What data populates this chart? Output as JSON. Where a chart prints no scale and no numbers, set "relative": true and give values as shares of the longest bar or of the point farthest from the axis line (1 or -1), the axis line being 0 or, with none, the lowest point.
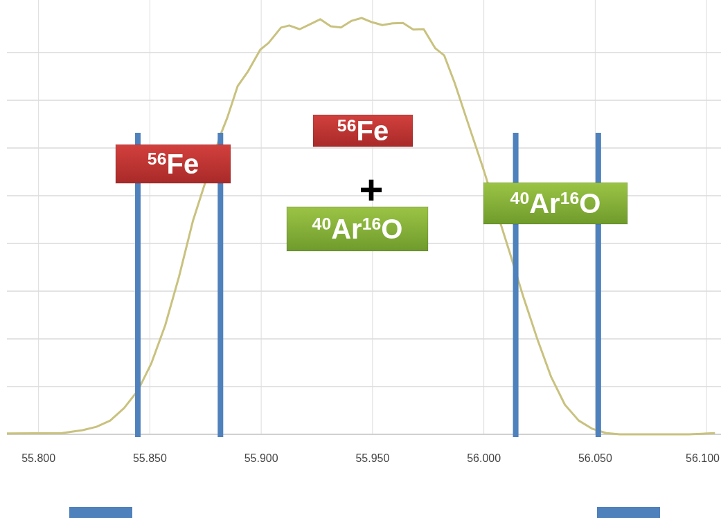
{
  "chart_data": {
    "type": "line",
    "relative": true,
    "tick_labels": "x",
    "grid": true,
    "marker": "none",
    "line_style": "solid",
    "xlim": [
      55.7858,
      56.1065
    ],
    "xticks": [
      {
        "value": 55.8,
        "label": "55.800"
      },
      {
        "value": 55.85,
        "label": "55.850"
      },
      {
        "value": 55.9,
        "label": "55.900"
      },
      {
        "value": 55.95,
        "label": "55.950"
      },
      {
        "value": 56.0,
        "label": "56.000"
      },
      {
        "value": 56.05,
        "label": "56.050"
      },
      {
        "value": 56.1,
        "label": "56.100"
      }
    ],
    "series": [
      {
        "color": "#c9c27f",
        "x": [
          55.7858,
          55.8105,
          55.8198,
          55.826,
          55.8322,
          55.8384,
          55.8446,
          55.8507,
          55.8569,
          55.8631,
          55.8693,
          55.8755,
          55.8817,
          55.8848,
          55.8894,
          55.8941,
          55.8996,
          55.9033,
          55.9089,
          55.9126,
          55.9173,
          55.9219,
          55.9265,
          55.9312,
          55.9358,
          55.9405,
          55.9451,
          55.9497,
          55.9544,
          55.959,
          55.9637,
          55.9683,
          55.973,
          55.9782,
          55.9822,
          55.9869,
          55.9931,
          55.9993,
          56.0054,
          56.0116,
          56.0178,
          56.024,
          56.0302,
          56.0364,
          56.0426,
          56.0488,
          56.055,
          56.0611,
          56.0921,
          56.1038
        ],
        "values": [
          0.002,
          0.003,
          0.01,
          0.018,
          0.033,
          0.063,
          0.105,
          0.171,
          0.262,
          0.379,
          0.512,
          null,
          0.719,
          0.761,
          0.836,
          0.872,
          0.924,
          0.94,
          0.977,
          0.982,
          0.973,
          0.985,
          0.997,
          0.98,
          0.977,
          0.993,
          1.0,
          0.99,
          0.983,
          0.987,
          0.988,
          0.972,
          0.973,
          0.927,
          0.91,
          0.844,
          0.744,
          0.645,
          null,
          0.437,
          0.329,
          0.229,
          0.138,
          0.071,
          0.033,
          0.013,
          0.003,
          0,
          0,
          0.003
        ]
      }
    ],
    "ref_lines": [
      {
        "axis": "x",
        "value": 55.8446,
        "color": "#4f81bd"
      },
      {
        "axis": "x",
        "value": 55.8817,
        "color": "#4f81bd"
      },
      {
        "axis": "x",
        "value": 56.0143,
        "color": "#4f81bd"
      },
      {
        "axis": "x",
        "value": 56.0514,
        "color": "#4f81bd"
      }
    ],
    "annotations": [
      "$^{56}$Fe",
      "$^{56}$Fe",
      "+",
      "$^{40}$Ar$^{16}$O",
      "$^{40}$Ar$^{16}$O"
    ]
  }
}
